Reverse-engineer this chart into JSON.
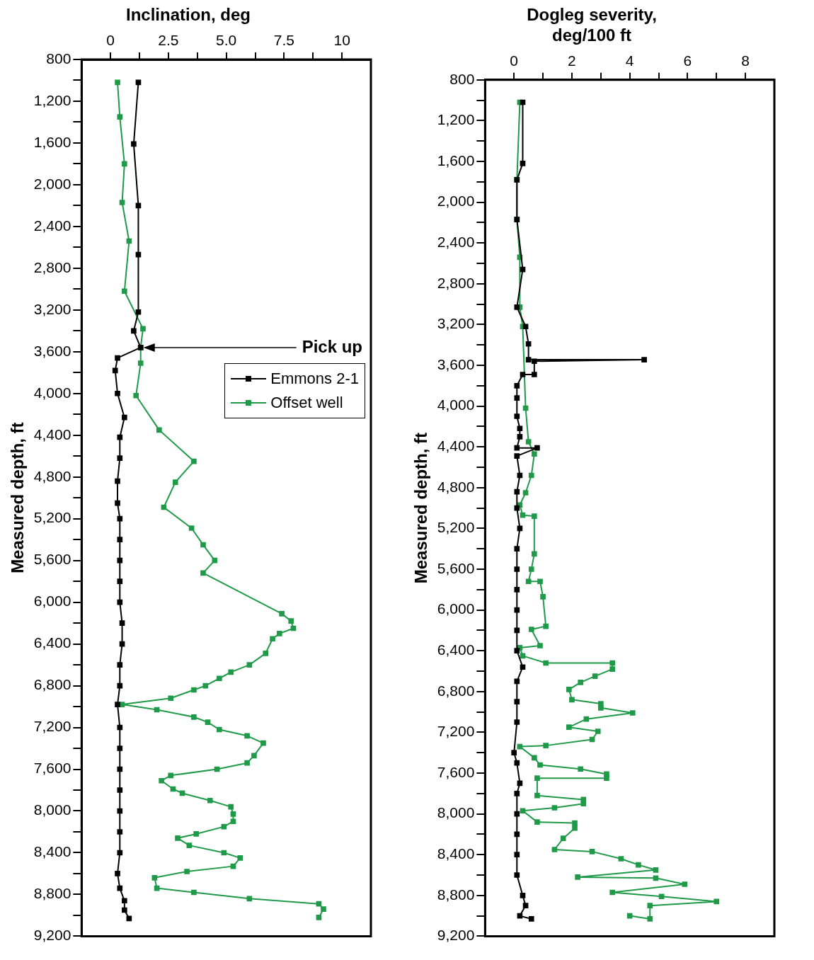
{
  "chart_data": [
    {
      "type": "line",
      "title": "Inclination, deg",
      "ylabel": "Measured depth, ft",
      "marker": "square",
      "grid": false,
      "legend": "right",
      "xlim": [
        -1.25,
        11.25
      ],
      "xticks": [
        0,
        {
          "value": 1.25,
          "label": null
        },
        2.5,
        {
          "value": 3.75,
          "label": null
        },
        {
          "value": 5,
          "label": "5.0"
        },
        {
          "value": 6.25,
          "label": null
        },
        7.5,
        {
          "value": 8.75,
          "label": null
        },
        10
      ],
      "ylim": [
        9200,
        800
      ],
      "yticks": [
        800,
        {
          "value": 1000,
          "label": null
        },
        {
          "value": 1200,
          "label": "1,200"
        },
        {
          "value": 1400,
          "label": null
        },
        {
          "value": 1600,
          "label": "1,600"
        },
        {
          "value": 1800,
          "label": null
        },
        {
          "value": 2000,
          "label": "2,000"
        },
        {
          "value": 2200,
          "label": null
        },
        {
          "value": 2400,
          "label": "2,400"
        },
        {
          "value": 2600,
          "label": null
        },
        {
          "value": 2800,
          "label": "2,800"
        },
        {
          "value": 3000,
          "label": null
        },
        {
          "value": 3200,
          "label": "3,200"
        },
        {
          "value": 3400,
          "label": null
        },
        {
          "value": 3600,
          "label": "3,600"
        },
        {
          "value": 3800,
          "label": null
        },
        {
          "value": 4000,
          "label": "4,000"
        },
        {
          "value": 4200,
          "label": null
        },
        {
          "value": 4400,
          "label": "4,400"
        },
        {
          "value": 4600,
          "label": null
        },
        {
          "value": 4800,
          "label": "4,800"
        },
        {
          "value": 5000,
          "label": null
        },
        {
          "value": 5200,
          "label": "5,200"
        },
        {
          "value": 5400,
          "label": null
        },
        {
          "value": 5600,
          "label": "5,600"
        },
        {
          "value": 5800,
          "label": null
        },
        {
          "value": 6000,
          "label": "6,000"
        },
        {
          "value": 6200,
          "label": null
        },
        {
          "value": 6400,
          "label": "6,400"
        },
        {
          "value": 6600,
          "label": null
        },
        {
          "value": 6800,
          "label": "6,800"
        },
        {
          "value": 7000,
          "label": null
        },
        {
          "value": 7200,
          "label": "7,200"
        },
        {
          "value": 7400,
          "label": null
        },
        {
          "value": 7600,
          "label": "7,600"
        },
        {
          "value": 7800,
          "label": null
        },
        {
          "value": 8000,
          "label": "8,000"
        },
        {
          "value": 8200,
          "label": null
        },
        {
          "value": 8400,
          "label": "8,400"
        },
        {
          "value": 8600,
          "label": null
        },
        {
          "value": 8800,
          "label": "8,800"
        },
        {
          "value": 9000,
          "label": null
        },
        {
          "value": 9200,
          "label": "9,200"
        }
      ],
      "annotations": [
        {
          "text": "Pick up",
          "x": 1.3,
          "y": 3560
        }
      ],
      "series": [
        {
          "name": "Emmons 2-1",
          "color": "#000000",
          "x": [
            1.2,
            1.0,
            1.2,
            1.2,
            1.2,
            1.0,
            1.3,
            0.3,
            0.2,
            0.3,
            0.6,
            0.4,
            0.4,
            0.3,
            0.3,
            0.4,
            0.4,
            0.4,
            0.4,
            0.4,
            0.5,
            0.5,
            0.4,
            0.4,
            0.3,
            0.4,
            0.4,
            0.4,
            0.4,
            0.4,
            0.4,
            0.4,
            0.3,
            0.4,
            0.6,
            0.6,
            0.8
          ],
          "values": [
            1020,
            1610,
            2200,
            2670,
            3220,
            3400,
            3560,
            3660,
            3780,
            4000,
            4230,
            4420,
            4620,
            4840,
            5050,
            5200,
            5400,
            5600,
            5800,
            6000,
            6200,
            6400,
            6600,
            6800,
            6980,
            7200,
            7400,
            7600,
            7800,
            8000,
            8200,
            8400,
            8600,
            8740,
            8860,
            8950,
            9030
          ]
        },
        {
          "name": "Offset well",
          "color": "#1f9a48",
          "x": [
            0.3,
            0.4,
            0.6,
            0.5,
            0.8,
            0.6,
            1.4,
            1.3,
            1.3,
            1.1,
            2.1,
            3.6,
            2.8,
            2.3,
            3.5,
            4.0,
            4.5,
            4.0,
            7.4,
            7.8,
            7.9,
            7.3,
            7.0,
            6.7,
            6.0,
            5.2,
            4.7,
            4.1,
            3.6,
            2.6,
            0.5,
            2.0,
            3.6,
            4.2,
            4.7,
            5.9,
            6.6,
            6.2,
            5.9,
            4.6,
            2.6,
            2.2,
            2.7,
            3.1,
            4.3,
            5.2,
            5.3,
            5.3,
            4.9,
            3.7,
            2.9,
            3.4,
            4.9,
            5.6,
            5.3,
            3.3,
            1.9,
            2.0,
            3.6,
            6.0,
            9.0,
            9.2,
            9.0
          ],
          "values": [
            1020,
            1350,
            1800,
            2170,
            2540,
            3020,
            3380,
            3560,
            3710,
            4020,
            4350,
            4650,
            4850,
            5090,
            5290,
            5450,
            5600,
            5720,
            6110,
            6180,
            6250,
            6300,
            6350,
            6490,
            6600,
            6670,
            6730,
            6800,
            6840,
            6920,
            6980,
            7030,
            7100,
            7150,
            7220,
            7280,
            7350,
            7470,
            7540,
            7600,
            7660,
            7710,
            7790,
            7830,
            7900,
            7960,
            8030,
            8100,
            8150,
            8220,
            8260,
            8330,
            8400,
            8450,
            8530,
            8580,
            8640,
            8740,
            8780,
            8840,
            8890,
            8940,
            9020
          ]
        }
      ]
    },
    {
      "type": "line",
      "title": "Dogleg severity, deg/100 ft",
      "ylabel": "Measured depth, ft",
      "marker": "square",
      "grid": false,
      "xlim": [
        -1,
        9
      ],
      "xticks": [
        0,
        {
          "value": 1,
          "label": null
        },
        2,
        {
          "value": 3,
          "label": null
        },
        4,
        {
          "value": 5,
          "label": null
        },
        6,
        {
          "value": 7,
          "label": null
        },
        8
      ],
      "ylim": [
        9200,
        800
      ],
      "yticks": [
        800,
        {
          "value": 1000,
          "label": null
        },
        {
          "value": 1200,
          "label": "1,200"
        },
        {
          "value": 1400,
          "label": null
        },
        {
          "value": 1600,
          "label": "1,600"
        },
        {
          "value": 1800,
          "label": null
        },
        {
          "value": 2000,
          "label": "2,000"
        },
        {
          "value": 2200,
          "label": null
        },
        {
          "value": 2400,
          "label": "2,400"
        },
        {
          "value": 2600,
          "label": null
        },
        {
          "value": 2800,
          "label": "2,800"
        },
        {
          "value": 3000,
          "label": null
        },
        {
          "value": 3200,
          "label": "3,200"
        },
        {
          "value": 3400,
          "label": null
        },
        {
          "value": 3600,
          "label": "3,600"
        },
        {
          "value": 3800,
          "label": null
        },
        {
          "value": 4000,
          "label": "4,000"
        },
        {
          "value": 4200,
          "label": null
        },
        {
          "value": 4400,
          "label": "4,400"
        },
        {
          "value": 4600,
          "label": null
        },
        {
          "value": 4800,
          "label": "4,800"
        },
        {
          "value": 5000,
          "label": null
        },
        {
          "value": 5200,
          "label": "5,200"
        },
        {
          "value": 5400,
          "label": null
        },
        {
          "value": 5600,
          "label": "5,600"
        },
        {
          "value": 5800,
          "label": null
        },
        {
          "value": 6000,
          "label": "6,000"
        },
        {
          "value": 6200,
          "label": null
        },
        {
          "value": 6400,
          "label": "6,400"
        },
        {
          "value": 6600,
          "label": null
        },
        {
          "value": 6800,
          "label": "6,800"
        },
        {
          "value": 7000,
          "label": null
        },
        {
          "value": 7200,
          "label": "7,200"
        },
        {
          "value": 7400,
          "label": null
        },
        {
          "value": 7600,
          "label": "7,600"
        },
        {
          "value": 7800,
          "label": null
        },
        {
          "value": 8000,
          "label": "8,000"
        },
        {
          "value": 8200,
          "label": null
        },
        {
          "value": 8400,
          "label": "8,400"
        },
        {
          "value": 8600,
          "label": null
        },
        {
          "value": 8800,
          "label": "8,800"
        },
        {
          "value": 9000,
          "label": null
        },
        {
          "value": 9200,
          "label": "9,200"
        }
      ],
      "series": [
        {
          "color": "#000000",
          "x": [
            0.3,
            0.3,
            0.1,
            0.1,
            0.3,
            0.1,
            0.4,
            0.5,
            0.5,
            4.5,
            0.7,
            0.7,
            0.3,
            0.1,
            0.1,
            0.1,
            0.2,
            0.2,
            0.1,
            0.8,
            0.1,
            0.2,
            0.1,
            0.1,
            0.2,
            0.1,
            0.1,
            0.1,
            0.1,
            0.1,
            0.1,
            0.3,
            0.1,
            0.1,
            0.1,
            0.0,
            0.1,
            0.2,
            0.1,
            0.1,
            0.1,
            0.1,
            0.1,
            0.3,
            0.4,
            0.2,
            0.6
          ],
          "values": [
            1020,
            1620,
            1780,
            2170,
            2660,
            3030,
            3220,
            3390,
            3545,
            3545,
            3560,
            3690,
            3690,
            3800,
            3920,
            4100,
            4220,
            4300,
            4410,
            4410,
            4490,
            4680,
            4840,
            5000,
            5200,
            5400,
            5600,
            5800,
            6000,
            6200,
            6400,
            6560,
            6700,
            6900,
            7100,
            7400,
            7500,
            7700,
            7800,
            8000,
            8200,
            8400,
            8600,
            8800,
            8900,
            9000,
            9030
          ]
        },
        {
          "color": "#1f9a48",
          "x": [
            0.2,
            0.1,
            0.1,
            0.2,
            0.2,
            0.3,
            0.4,
            0.5,
            0.7,
            0.6,
            0.4,
            0.2,
            0.3,
            0.7,
            0.7,
            0.6,
            0.5,
            0.9,
            1.0,
            1.1,
            0.6,
            0.9,
            0.2,
            0.3,
            1.1,
            3.4,
            3.4,
            2.8,
            2.3,
            1.9,
            2.0,
            3.0,
            3.0,
            4.1,
            2.5,
            1.9,
            2.9,
            2.7,
            1.1,
            0.2,
            0.7,
            0.9,
            2.3,
            3.2,
            3.2,
            0.8,
            0.8,
            2.4,
            2.4,
            1.4,
            0.3,
            0.8,
            2.1,
            2.1,
            1.7,
            1.4,
            2.7,
            3.7,
            4.3,
            4.9,
            2.2,
            4.9,
            5.9,
            3.4,
            5.1,
            7.0,
            4.7,
            4.7,
            4.0
          ],
          "values": [
            1020,
            1780,
            2170,
            2540,
            3030,
            3220,
            4020,
            4350,
            4470,
            4680,
            4850,
            4970,
            5070,
            5080,
            5450,
            5600,
            5720,
            5720,
            5870,
            6160,
            6190,
            6350,
            6370,
            6450,
            6520,
            6520,
            6580,
            6650,
            6710,
            6780,
            6880,
            6920,
            6960,
            7010,
            7070,
            7150,
            7190,
            7270,
            7330,
            7340,
            7450,
            7520,
            7560,
            7610,
            7650,
            7650,
            7820,
            7860,
            7900,
            7940,
            7970,
            8080,
            8090,
            8140,
            8240,
            8350,
            8370,
            8440,
            8500,
            8550,
            8620,
            8630,
            8690,
            8770,
            8810,
            8860,
            8900,
            9030,
            9000
          ]
        }
      ]
    }
  ]
}
